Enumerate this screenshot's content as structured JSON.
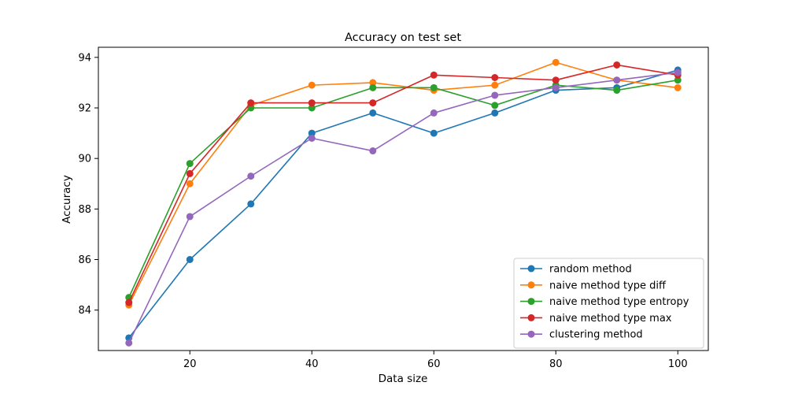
{
  "chart_data": {
    "type": "line",
    "title": "Accuracy on test set",
    "xlabel": "Data size",
    "ylabel": "Accuracy",
    "xlim": [
      5,
      105
    ],
    "ylim": [
      82.4,
      94.4
    ],
    "xticks": [
      20,
      40,
      60,
      80,
      100
    ],
    "yticks": [
      84,
      86,
      88,
      90,
      92,
      94
    ],
    "grid": false,
    "legend_position": "lower-right",
    "x": [
      10,
      20,
      30,
      40,
      50,
      60,
      70,
      80,
      90,
      100
    ],
    "series": [
      {
        "name": "random method",
        "color": "#1f77b4",
        "values": [
          82.9,
          86.0,
          88.2,
          91.0,
          91.8,
          91.0,
          91.8,
          92.7,
          92.8,
          93.5
        ]
      },
      {
        "name": "naive method type diff",
        "color": "#ff7f0e",
        "values": [
          84.2,
          89.0,
          92.1,
          92.9,
          93.0,
          92.7,
          92.9,
          93.8,
          93.1,
          92.8
        ]
      },
      {
        "name": "naive method type entropy",
        "color": "#2ca02c",
        "values": [
          84.5,
          89.8,
          92.0,
          92.0,
          92.8,
          92.8,
          92.1,
          92.9,
          92.7,
          93.1
        ]
      },
      {
        "name": "naive method type max",
        "color": "#d62728",
        "values": [
          84.3,
          89.4,
          92.2,
          92.2,
          92.2,
          93.3,
          93.2,
          93.1,
          93.7,
          93.3
        ]
      },
      {
        "name": "clustering method",
        "color": "#9467bd",
        "values": [
          82.7,
          87.7,
          89.3,
          90.8,
          90.3,
          91.8,
          92.5,
          92.8,
          93.1,
          93.4
        ]
      }
    ]
  }
}
